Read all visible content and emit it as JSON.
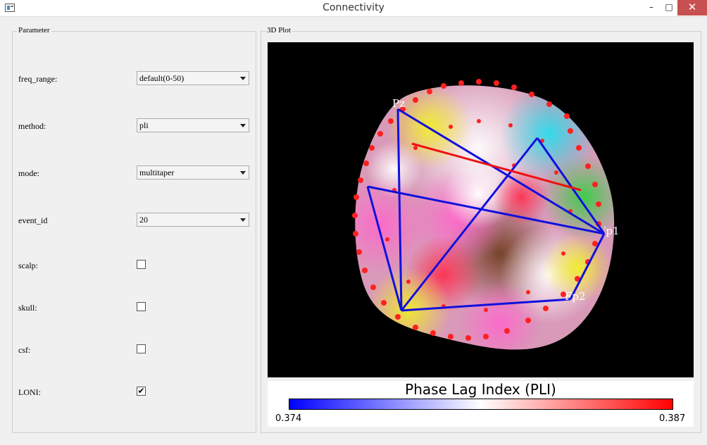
{
  "window": {
    "title": "Connectivity",
    "minimize": "–",
    "maximize": "□",
    "close": "✕"
  },
  "params": {
    "title": "Parameter",
    "freq_range": {
      "label": "freq_range:",
      "value": "default(0-50)"
    },
    "method": {
      "label": "method:",
      "value": "pli"
    },
    "mode": {
      "label": "mode:",
      "value": "multitaper"
    },
    "event_id": {
      "label": "event_id",
      "value": "20"
    },
    "scalp": {
      "label": "scalp:",
      "checked": false,
      "mark": ""
    },
    "skull": {
      "label": "skull:",
      "checked": false,
      "mark": ""
    },
    "csf": {
      "label": "csf:",
      "checked": false,
      "mark": ""
    },
    "loni": {
      "label": "LONI:",
      "checked": true,
      "mark": "✔"
    }
  },
  "plot": {
    "title": "3D Plot",
    "electrodes": [
      "Pz",
      "Fp1",
      "Fp2"
    ],
    "colors": {
      "connection_blue": "#1010dd",
      "connection_red": "#ee1111",
      "background": "#000000"
    },
    "legend": {
      "title": "Phase Lag Index (PLI)",
      "min": "0.374",
      "max": "0.387"
    }
  }
}
